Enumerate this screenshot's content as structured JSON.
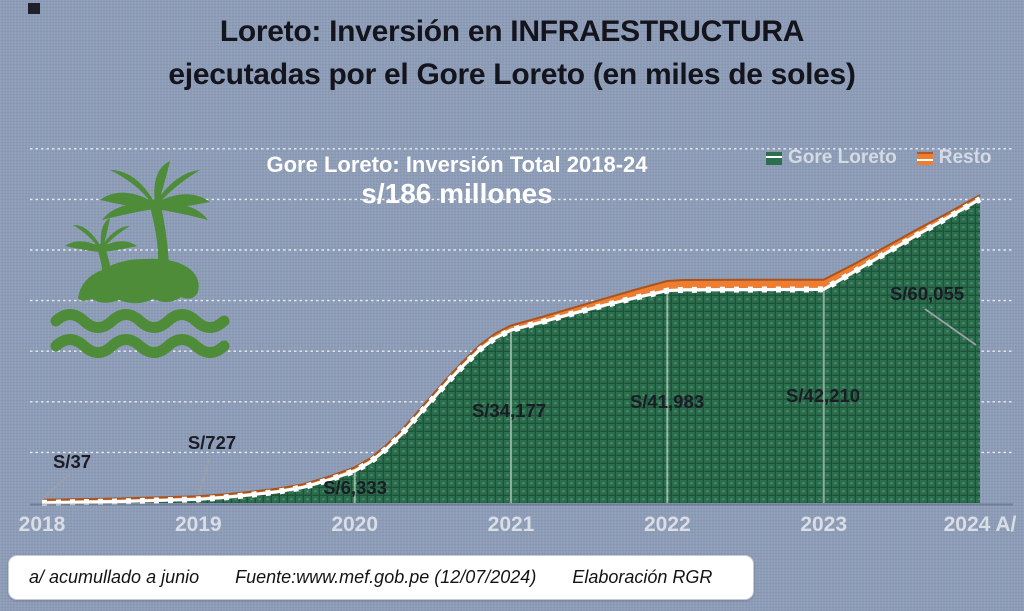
{
  "title": {
    "line1": "Loreto: Inversión en INFRAESTRUCTURA",
    "line2": "ejecutadas por el Gore Loreto (en miles de soles)"
  },
  "chart": {
    "subtitle_line1": "Gore Loreto: Inversión Total 2018-24",
    "subtitle_line2": "s/186 millones",
    "legend": [
      {
        "label": "Gore Loreto",
        "color": "#2c6f4e"
      },
      {
        "label": "Resto",
        "color": "#ed7d31"
      }
    ]
  },
  "chart_data": {
    "type": "area",
    "stacked": true,
    "title": "Gore Loreto: Inversión Total 2018-24",
    "subtitle": "s/186 millones",
    "xlabel": "",
    "ylabel": "miles de soles",
    "ylim": [
      0,
      74000
    ],
    "gridlines_every": 10000,
    "grid": "horizontal-dotted",
    "legend_position": "top-right",
    "categories": [
      "2018",
      "2019",
      "2020",
      "2021",
      "2022",
      "2023",
      "2024 A/"
    ],
    "series": [
      {
        "name": "Gore Loreto",
        "color": "#2c6f4e",
        "values": [
          37,
          727,
          6333,
          34177,
          41983,
          42210,
          60055
        ],
        "data_labels": [
          "S/37",
          "S/727",
          "S/6,333",
          "S/34,177",
          "S/41,983",
          "S/42,210",
          "S/60,055"
        ]
      },
      {
        "name": "Resto",
        "color": "#ed7d31",
        "values_estimated_visual": [
          300,
          450,
          700,
          900,
          1900,
          1900,
          800
        ]
      }
    ],
    "shape_points": [
      [
        2018.0,
        37,
        300
      ],
      [
        2018.5,
        300,
        350
      ],
      [
        2019.0,
        727,
        450
      ],
      [
        2019.17,
        1100,
        500
      ],
      [
        2019.33,
        1600,
        520
      ],
      [
        2019.5,
        2200,
        550
      ],
      [
        2019.67,
        3100,
        600
      ],
      [
        2019.83,
        4500,
        650
      ],
      [
        2020.0,
        6333,
        700
      ],
      [
        2020.1,
        8100,
        720
      ],
      [
        2020.2,
        10600,
        740
      ],
      [
        2020.3,
        13600,
        760
      ],
      [
        2020.4,
        17100,
        790
      ],
      [
        2020.5,
        20600,
        820
      ],
      [
        2020.6,
        24100,
        850
      ],
      [
        2020.7,
        27300,
        870
      ],
      [
        2020.8,
        30300,
        890
      ],
      [
        2020.9,
        32600,
        900
      ],
      [
        2021.0,
        34177,
        900
      ],
      [
        2021.2,
        35800,
        1000
      ],
      [
        2021.4,
        37500,
        1100
      ],
      [
        2021.6,
        39100,
        1300
      ],
      [
        2021.8,
        40600,
        1600
      ],
      [
        2022.0,
        41983,
        1900
      ],
      [
        2022.1,
        42120,
        1950
      ],
      [
        2022.5,
        42180,
        1950
      ],
      [
        2023.0,
        42210,
        1900
      ],
      [
        2023.2,
        45800,
        1500
      ],
      [
        2023.4,
        49400,
        1300
      ],
      [
        2023.6,
        53000,
        1100
      ],
      [
        2023.8,
        56500,
        900
      ],
      [
        2024.0,
        60055,
        800
      ]
    ]
  },
  "footer": {
    "note": "a/ acumullado a junio",
    "source": "Fuente:www.mef.gob.pe (12/07/2024)",
    "credit": "Elaboración RGR"
  },
  "colors": {
    "background": "#8e9db7",
    "green_area": "#2c6f4e",
    "orange_area": "#ed7d31",
    "orange_edge": "#a9531f",
    "white_boundary": "#ffffff",
    "grid_dotted": "#ffffff",
    "axis_text": "#d9dde6",
    "legend_text": "#d5dae3",
    "data_label_text": "#1c1c26",
    "leader_line": "#9aa0a8",
    "palm_green": "#4e8c3a",
    "title_text": "#14141d"
  }
}
